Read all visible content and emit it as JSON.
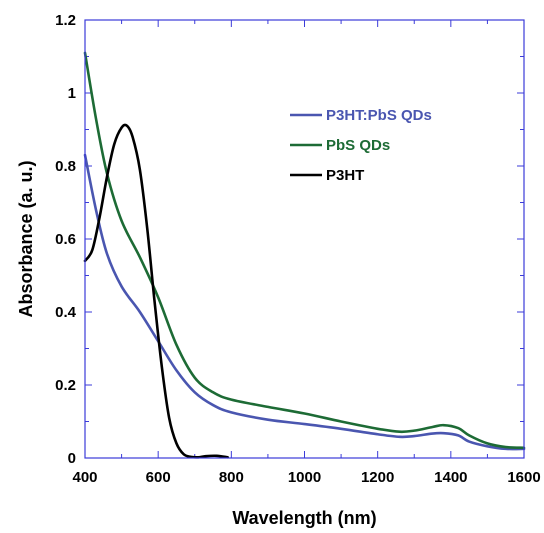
{
  "chart_data": {
    "type": "line",
    "xlabel": "Wavelength (nm)",
    "ylabel": "Absorbance (a. u.)",
    "xlim": [
      400,
      1600
    ],
    "ylim": [
      0,
      1.2
    ],
    "xticks": [
      400,
      600,
      800,
      1000,
      1200,
      1400,
      1600
    ],
    "xtick_labels": [
      "400",
      "600",
      "800",
      "1000",
      "1200",
      "1400",
      "1600"
    ],
    "yticks": [
      0,
      0.2,
      0.4,
      0.6,
      0.8,
      1,
      1.2
    ],
    "ytick_labels": [
      "0",
      "0.2",
      "0.4",
      "0.6",
      "0.8",
      "1",
      "1.2"
    ],
    "legend_position": "top-right",
    "frame_color": "#3b3bd9",
    "series": [
      {
        "name": "P3HT:PbS QDs",
        "color": "#4a56b0",
        "x": [
          400,
          430,
          460,
          500,
          550,
          600,
          650,
          700,
          750,
          800,
          900,
          1000,
          1100,
          1200,
          1260,
          1300,
          1350,
          1380,
          1420,
          1450,
          1500,
          1550,
          1600
        ],
        "y": [
          0.83,
          0.68,
          0.56,
          0.47,
          0.4,
          0.32,
          0.24,
          0.18,
          0.145,
          0.125,
          0.105,
          0.093,
          0.08,
          0.065,
          0.058,
          0.06,
          0.067,
          0.068,
          0.062,
          0.045,
          0.032,
          0.025,
          0.025
        ]
      },
      {
        "name": "PbS QDs",
        "color": "#1d6b35",
        "x": [
          400,
          430,
          460,
          500,
          550,
          600,
          650,
          700,
          750,
          800,
          900,
          1000,
          1100,
          1200,
          1260,
          1300,
          1350,
          1380,
          1420,
          1450,
          1500,
          1550,
          1600
        ],
        "y": [
          1.11,
          0.93,
          0.78,
          0.65,
          0.55,
          0.44,
          0.31,
          0.22,
          0.18,
          0.16,
          0.14,
          0.122,
          0.1,
          0.08,
          0.072,
          0.075,
          0.085,
          0.09,
          0.082,
          0.062,
          0.04,
          0.03,
          0.028
        ]
      },
      {
        "name": "P3HT",
        "color": "#000000",
        "x": [
          400,
          420,
          440,
          460,
          480,
          500,
          515,
          530,
          550,
          570,
          590,
          610,
          630,
          650,
          670,
          690,
          710,
          730,
          760,
          790
        ],
        "y": [
          0.54,
          0.57,
          0.66,
          0.77,
          0.86,
          0.905,
          0.91,
          0.88,
          0.79,
          0.63,
          0.43,
          0.25,
          0.11,
          0.04,
          0.01,
          0.003,
          0.002,
          0.005,
          0.006,
          0.002
        ]
      }
    ]
  }
}
